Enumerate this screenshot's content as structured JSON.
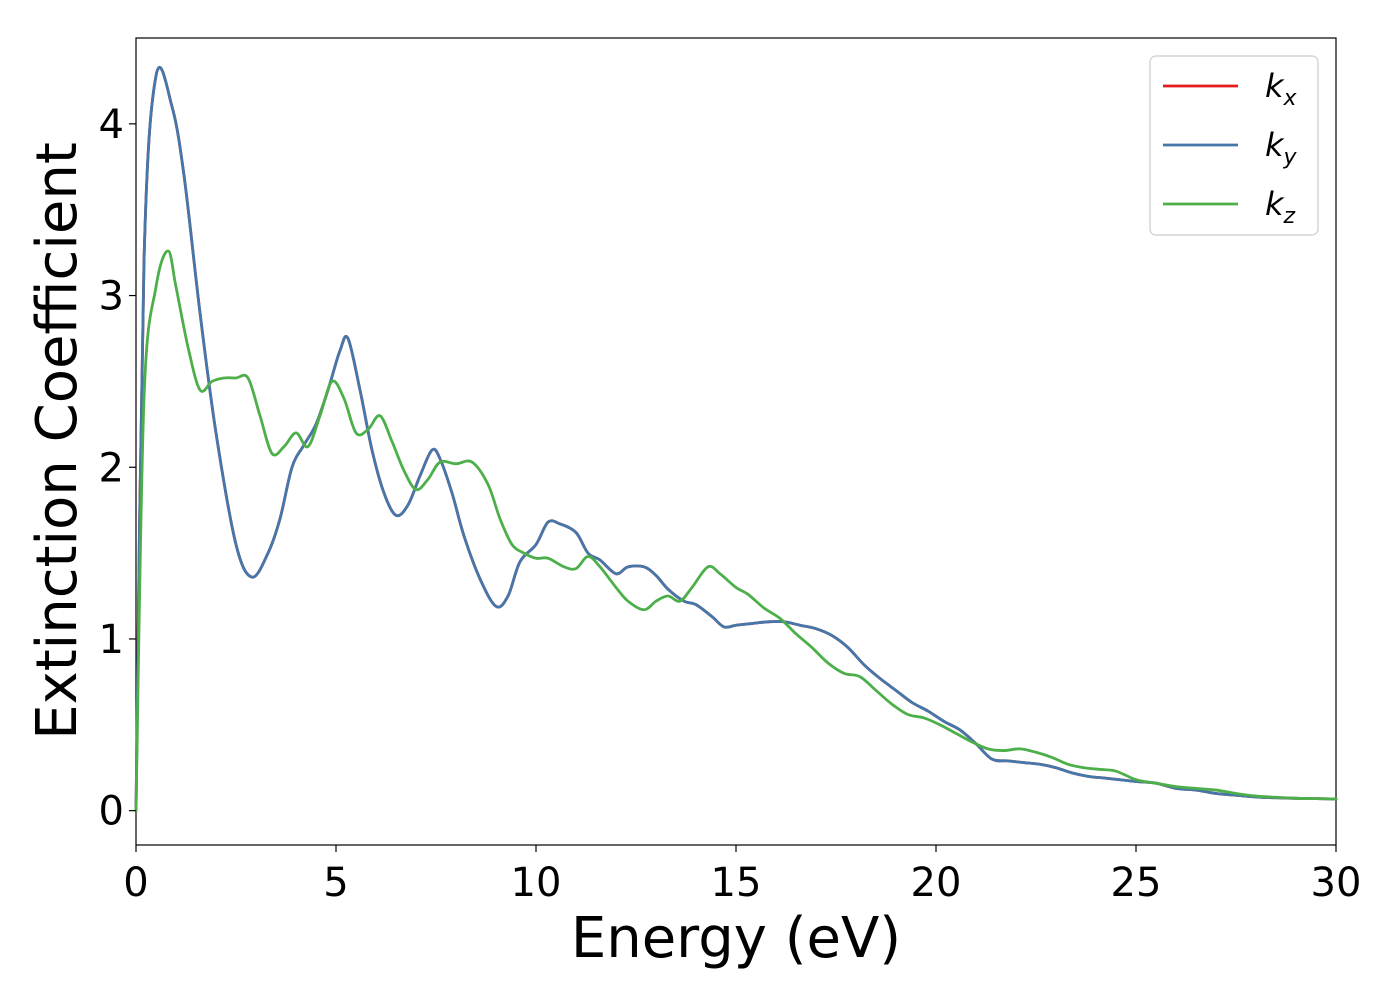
{
  "chart_data": {
    "type": "line",
    "xlabel": "Energy (eV)",
    "ylabel": "Extinction Coefficient",
    "xlim": [
      0,
      30
    ],
    "ylim": [
      -0.2,
      4.5
    ],
    "xticks": [
      0,
      5,
      10,
      15,
      20,
      25,
      30
    ],
    "yticks": [
      0,
      1,
      2,
      3,
      4
    ],
    "grid": false,
    "legend_position": "top-right",
    "colors": {
      "kx": "#e41a1c",
      "ky": "#4477aa",
      "kz": "#4daf4a"
    },
    "series": [
      {
        "name": "k",
        "subscript": "x",
        "color_key": "kx",
        "x": [
          0,
          0.2,
          0.5,
          0.9,
          1.2,
          1.6,
          2.0,
          2.5,
          2.9,
          3.3,
          3.6,
          3.9,
          4.2,
          4.5,
          4.8,
          5.1,
          5.3,
          5.6,
          5.9,
          6.2,
          6.5,
          6.8,
          7.1,
          7.4,
          7.6,
          7.9,
          8.2,
          8.6,
          9.0,
          9.3,
          9.6,
          10.0,
          10.3,
          10.6,
          11.0,
          11.3,
          11.6,
          12.0,
          12.3,
          12.7,
          13.0,
          13.3,
          13.7,
          14.0,
          14.4,
          14.7,
          15.0,
          15.4,
          15.8,
          16.2,
          16.6,
          17.0,
          17.4,
          17.8,
          18.2,
          18.6,
          19.0,
          19.4,
          19.8,
          20.2,
          20.6,
          21.0,
          21.4,
          21.8,
          22.2,
          22.6,
          23.0,
          23.4,
          23.8,
          24.2,
          24.6,
          25.0,
          25.5,
          26.0,
          26.5,
          27.0,
          27.5,
          28.0,
          28.5,
          29.0,
          29.5,
          30.0
        ],
        "y": [
          0,
          3.2,
          4.28,
          4.1,
          3.7,
          2.9,
          2.2,
          1.55,
          1.36,
          1.5,
          1.7,
          2.0,
          2.13,
          2.25,
          2.45,
          2.68,
          2.75,
          2.45,
          2.1,
          1.85,
          1.72,
          1.78,
          1.95,
          2.1,
          2.05,
          1.85,
          1.6,
          1.35,
          1.19,
          1.25,
          1.45,
          1.55,
          1.68,
          1.67,
          1.62,
          1.5,
          1.46,
          1.38,
          1.42,
          1.42,
          1.37,
          1.29,
          1.22,
          1.2,
          1.13,
          1.07,
          1.08,
          1.09,
          1.1,
          1.1,
          1.08,
          1.06,
          1.02,
          0.95,
          0.85,
          0.77,
          0.7,
          0.63,
          0.58,
          0.52,
          0.47,
          0.39,
          0.3,
          0.29,
          0.28,
          0.27,
          0.25,
          0.22,
          0.2,
          0.19,
          0.18,
          0.17,
          0.16,
          0.13,
          0.12,
          0.1,
          0.09,
          0.08,
          0.075,
          0.072,
          0.07,
          0.068
        ]
      },
      {
        "name": "k",
        "subscript": "y",
        "color_key": "ky",
        "x": [
          0,
          0.2,
          0.5,
          0.9,
          1.2,
          1.6,
          2.0,
          2.5,
          2.9,
          3.3,
          3.6,
          3.9,
          4.2,
          4.5,
          4.8,
          5.1,
          5.3,
          5.6,
          5.9,
          6.2,
          6.5,
          6.8,
          7.1,
          7.4,
          7.6,
          7.9,
          8.2,
          8.6,
          9.0,
          9.3,
          9.6,
          10.0,
          10.3,
          10.6,
          11.0,
          11.3,
          11.6,
          12.0,
          12.3,
          12.7,
          13.0,
          13.3,
          13.7,
          14.0,
          14.4,
          14.7,
          15.0,
          15.4,
          15.8,
          16.2,
          16.6,
          17.0,
          17.4,
          17.8,
          18.2,
          18.6,
          19.0,
          19.4,
          19.8,
          20.2,
          20.6,
          21.0,
          21.4,
          21.8,
          22.2,
          22.6,
          23.0,
          23.4,
          23.8,
          24.2,
          24.6,
          25.0,
          25.5,
          26.0,
          26.5,
          27.0,
          27.5,
          28.0,
          28.5,
          29.0,
          29.5,
          30.0
        ],
        "y": [
          0,
          3.2,
          4.28,
          4.1,
          3.7,
          2.9,
          2.2,
          1.55,
          1.36,
          1.5,
          1.7,
          2.0,
          2.13,
          2.25,
          2.45,
          2.68,
          2.75,
          2.45,
          2.1,
          1.85,
          1.72,
          1.78,
          1.95,
          2.1,
          2.05,
          1.85,
          1.6,
          1.35,
          1.19,
          1.25,
          1.45,
          1.55,
          1.68,
          1.67,
          1.62,
          1.5,
          1.46,
          1.38,
          1.42,
          1.42,
          1.37,
          1.29,
          1.22,
          1.2,
          1.13,
          1.07,
          1.08,
          1.09,
          1.1,
          1.1,
          1.08,
          1.06,
          1.02,
          0.95,
          0.85,
          0.77,
          0.7,
          0.63,
          0.58,
          0.52,
          0.47,
          0.39,
          0.3,
          0.29,
          0.28,
          0.27,
          0.25,
          0.22,
          0.2,
          0.19,
          0.18,
          0.17,
          0.16,
          0.13,
          0.12,
          0.1,
          0.09,
          0.08,
          0.075,
          0.072,
          0.07,
          0.068
        ]
      },
      {
        "name": "k",
        "subscript": "z",
        "color_key": "kz",
        "x": [
          0,
          0.2,
          0.5,
          0.8,
          1.0,
          1.3,
          1.6,
          1.9,
          2.2,
          2.5,
          2.8,
          3.1,
          3.4,
          3.7,
          4.0,
          4.3,
          4.6,
          4.9,
          5.2,
          5.5,
          5.8,
          6.1,
          6.4,
          6.7,
          7.0,
          7.3,
          7.6,
          8.0,
          8.4,
          8.8,
          9.1,
          9.4,
          9.7,
          10.0,
          10.3,
          10.7,
          11.0,
          11.3,
          11.6,
          12.0,
          12.3,
          12.7,
          13.0,
          13.3,
          13.6,
          13.9,
          14.3,
          14.6,
          15.0,
          15.3,
          15.7,
          16.1,
          16.5,
          16.9,
          17.3,
          17.7,
          18.1,
          18.5,
          18.9,
          19.3,
          19.7,
          20.1,
          20.5,
          20.9,
          21.3,
          21.7,
          22.1,
          22.5,
          22.9,
          23.3,
          23.7,
          24.1,
          24.5,
          25.0,
          25.5,
          26.0,
          26.5,
          27.0,
          27.5,
          28.0,
          28.5,
          29.0,
          29.5,
          30.0
        ],
        "y": [
          0,
          2.4,
          3.05,
          3.26,
          3.05,
          2.7,
          2.45,
          2.5,
          2.52,
          2.52,
          2.52,
          2.3,
          2.08,
          2.12,
          2.2,
          2.12,
          2.3,
          2.5,
          2.4,
          2.2,
          2.22,
          2.3,
          2.15,
          1.98,
          1.87,
          1.93,
          2.03,
          2.02,
          2.03,
          1.9,
          1.7,
          1.55,
          1.5,
          1.47,
          1.47,
          1.42,
          1.41,
          1.48,
          1.42,
          1.3,
          1.22,
          1.17,
          1.22,
          1.25,
          1.22,
          1.3,
          1.42,
          1.38,
          1.3,
          1.26,
          1.18,
          1.12,
          1.03,
          0.95,
          0.86,
          0.8,
          0.78,
          0.7,
          0.62,
          0.56,
          0.54,
          0.5,
          0.45,
          0.4,
          0.36,
          0.35,
          0.36,
          0.34,
          0.31,
          0.27,
          0.25,
          0.24,
          0.23,
          0.18,
          0.16,
          0.14,
          0.13,
          0.12,
          0.1,
          0.085,
          0.078,
          0.072,
          0.07,
          0.068
        ]
      }
    ]
  }
}
